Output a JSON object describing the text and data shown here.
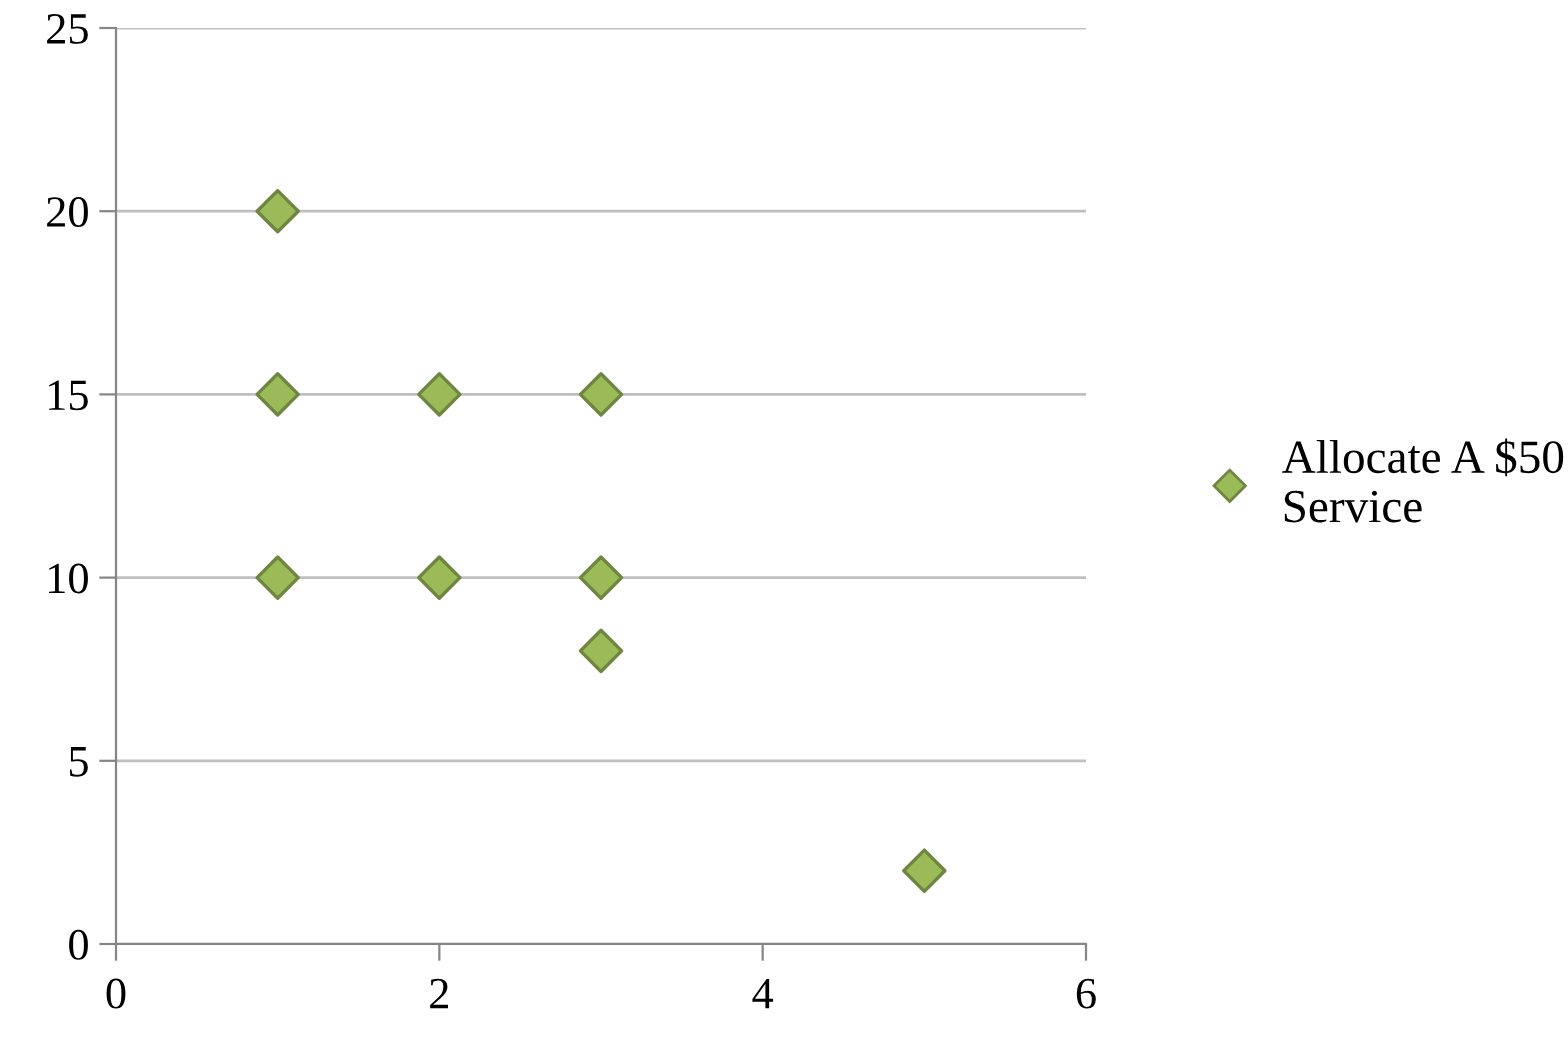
{
  "chart_data": {
    "type": "scatter",
    "series": [
      {
        "name": "Allocate A $50 Service",
        "color": "#9bbb59",
        "x": [
          1,
          1,
          2,
          3,
          1,
          2,
          3,
          3,
          5
        ],
        "values": [
          20,
          15,
          15,
          15,
          10,
          10,
          10,
          8,
          2
        ]
      }
    ],
    "xlim": [
      0,
      6
    ],
    "xticks": [
      0,
      2,
      4,
      6
    ],
    "ylim": [
      0,
      25
    ],
    "yticks": [
      0,
      5,
      10,
      15,
      20,
      25
    ],
    "grid": "y",
    "legend": "right",
    "marker": "diamond"
  }
}
